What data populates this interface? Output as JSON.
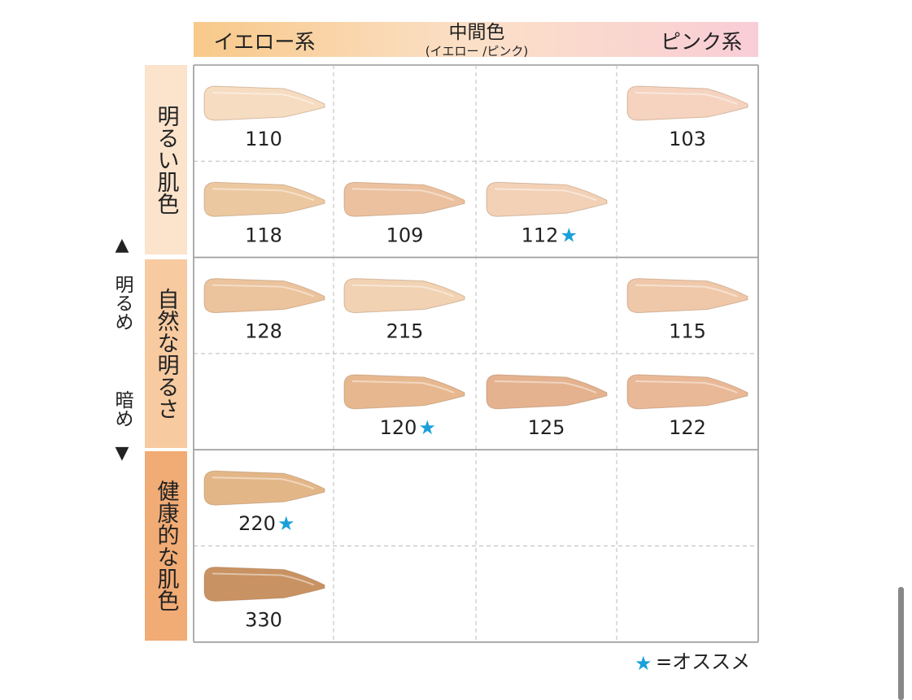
{
  "header": {
    "yellow": "イエロー系",
    "middle": "中間色",
    "middle_sub": "(イエロー /ピンク)",
    "pink": "ピンク系"
  },
  "axis": {
    "up": "▲",
    "light": "明るめ",
    "dark": "暗め",
    "down": "▼"
  },
  "groups": [
    {
      "label": "明るい肌色",
      "color": "#fbe3cc"
    },
    {
      "label": "自然な明るさ",
      "color": "#f7caa0"
    },
    {
      "label": "健康的な肌色",
      "color": "#f1ab74"
    }
  ],
  "rows": [
    [
      {
        "shade": "110",
        "color": "#f6dcc0"
      },
      null,
      null,
      {
        "shade": "103",
        "color": "#f5d3bf"
      }
    ],
    [
      {
        "shade": "118",
        "color": "#ecc8a0"
      },
      {
        "shade": "109",
        "color": "#ebc19f"
      },
      {
        "shade": "112",
        "mark": "★",
        "color": "#f2d1b6"
      },
      null
    ],
    [
      {
        "shade": "128",
        "color": "#ebc39c"
      },
      {
        "shade": "215",
        "color": "#f1d2b2"
      },
      null,
      {
        "shade": "115",
        "color": "#efc8aa"
      }
    ],
    [
      null,
      {
        "shade": "120",
        "mark": "★",
        "color": "#e7b88f"
      },
      {
        "shade": "125",
        "color": "#e4b28f"
      },
      {
        "shade": "122",
        "color": "#e9b896"
      }
    ],
    [
      {
        "shade": "220",
        "mark": "★",
        "color": "#e3b688"
      },
      null,
      null,
      null
    ],
    [
      {
        "shade": "330",
        "color": "#c99262"
      },
      null,
      null,
      null
    ]
  ],
  "legend": {
    "symbol": "★",
    "text": "=オススメ"
  }
}
